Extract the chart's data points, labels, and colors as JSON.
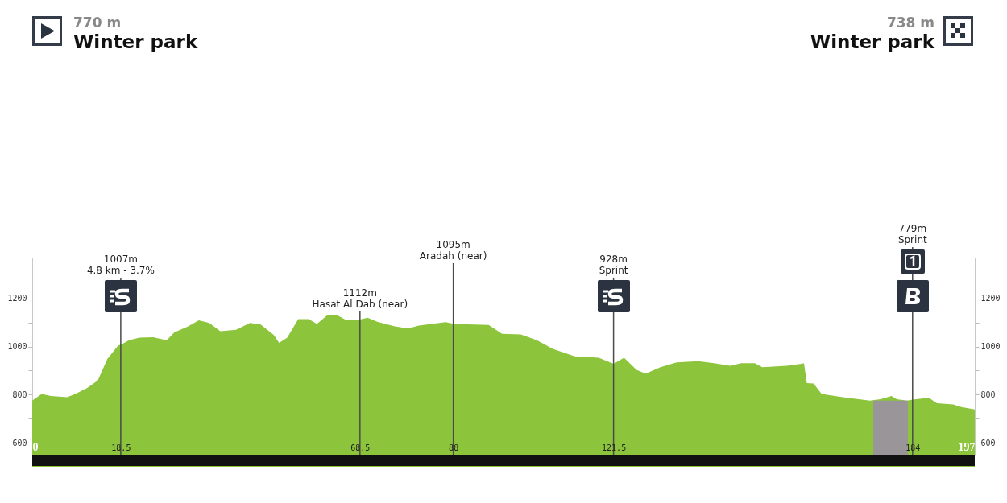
{
  "chart_data": {
    "type": "area",
    "annotations": [
      "770 m",
      "Winter park",
      "738 m",
      "Winter park"
    ],
    "x": [
      0,
      1.97,
      3.9,
      7.3,
      9.0,
      11.5,
      13.7,
      15.7,
      18.0,
      18.5,
      20.2,
      22.4,
      25.3,
      28.1,
      29.7,
      32.5,
      34.8,
      37.0,
      39.3,
      42.6,
      45.5,
      47.7,
      50.5,
      51.6,
      53.3,
      55.6,
      57.8,
      59.5,
      61.7,
      63.7,
      65.7,
      68.5,
      70.1,
      72.1,
      75.6,
      78.6,
      80.8,
      86.4,
      88,
      90.9,
      95.4,
      98.2,
      102.1,
      105.5,
      108.8,
      113.4,
      118.4,
      121.5,
      123.7,
      126.3,
      128.2,
      131.3,
      134.7,
      139.2,
      142.5,
      145.9,
      148.2,
      151.0,
      152.6,
      157.7,
      160.8,
      161.3,
      161.9,
      163.3,
      165.0,
      169.4,
      175.1,
      177.3,
      179.6,
      180.7,
      182.9,
      184,
      187.4,
      189.1,
      192.5,
      194.2,
      197
    ],
    "series": [
      {
        "color": "#8cc43c",
        "values": [
          775,
          803,
          794,
          789,
          803,
          828,
          859,
          948,
          1005,
          1007,
          1026,
          1037,
          1039,
          1026,
          1059,
          1083,
          1109,
          1098,
          1064,
          1070,
          1098,
          1092,
          1048,
          1015,
          1037,
          1114,
          1114,
          1094,
          1131,
          1131,
          1109,
          1112,
          1120,
          1103,
          1085,
          1075,
          1087,
          1101,
          1095,
          1092,
          1090,
          1053,
          1050,
          1026,
          990,
          959,
          953,
          928,
          953,
          903,
          887,
          914,
          934,
          939,
          931,
          920,
          931,
          931,
          914,
          920,
          928,
          931,
          848,
          846,
          803,
          789,
          775,
          781,
          794,
          781,
          775,
          779,
          787,
          764,
          759,
          748,
          738
        ]
      }
    ],
    "xlim": [
      0,
      197
    ],
    "xticks": [
      0,
      18.5,
      68.5,
      88,
      121.5,
      184,
      197
    ],
    "ylim": [
      550,
      1370
    ],
    "yticks": [
      600,
      {
        "value": 700,
        "label": null
      },
      800,
      {
        "value": 900,
        "label": null
      },
      1000,
      {
        "value": 1100,
        "label": null
      },
      1200
    ],
    "y2lim": [
      550,
      1370
    ],
    "y2ticks": [
      600,
      {
        "value": 700,
        "label": null
      },
      800,
      {
        "value": 900,
        "label": null
      },
      1000,
      {
        "value": 1100,
        "label": null
      },
      1200
    ],
    "ref_lines": [
      {
        "axis": "x",
        "value": 18.5,
        "label": "1007m\n4.8 km - 3.7%",
        "color": "#4a4a4a"
      },
      {
        "axis": "x",
        "value": 68.5,
        "label": "1112m\nHasat Al Dab (near)",
        "color": "#4a4a4a"
      },
      {
        "axis": "x",
        "value": 88,
        "label": "1095m\nAradah (near)",
        "color": "#4a4a4a"
      },
      {
        "axis": "x",
        "value": 121.5,
        "label": "928m\nSprint",
        "color": "#4a4a4a"
      },
      {
        "axis": "x",
        "value": 184,
        "label": "779m\nSprint",
        "color": "#4a4a4a"
      }
    ],
    "bands": [
      {
        "axis": "x",
        "from": 175.8,
        "to": 183.0,
        "color": "#9a9598"
      }
    ],
    "grid": false
  }
}
